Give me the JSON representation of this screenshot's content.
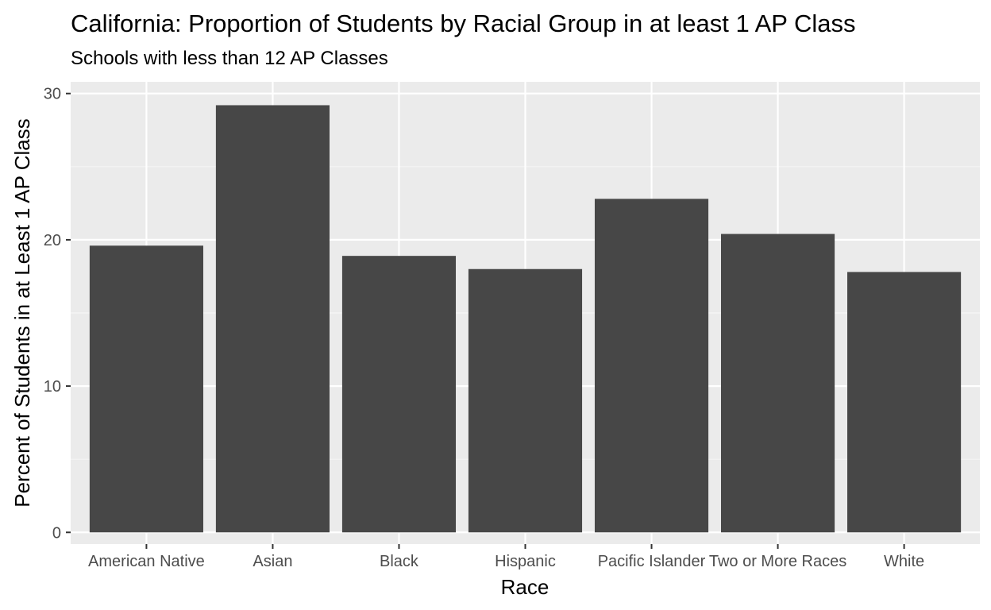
{
  "chart_data": {
    "type": "bar",
    "title": "California: Proportion of Students by Racial Group in at least 1 AP Class",
    "subtitle": "Schools with less than 12 AP Classes",
    "xlabel": "Race",
    "ylabel": "Percent of Students in at Least 1 AP Class",
    "categories": [
      "American Native",
      "Asian",
      "Black",
      "Hispanic",
      "Pacific Islander",
      "Two or More Races",
      "White"
    ],
    "values": [
      19.6,
      29.2,
      18.9,
      18.0,
      22.8,
      20.4,
      17.8
    ],
    "ylim": [
      -0.8,
      30.8
    ],
    "yticks": [
      0,
      10,
      20,
      30
    ],
    "ytick_labels": [
      "0",
      "10",
      "20",
      "30"
    ],
    "grid": true,
    "legend": "none",
    "colors": {
      "bar": "#474747",
      "panel_background": "#ebebeb",
      "grid_major": "#ffffff",
      "grid_minor": "#f5f5f5",
      "tick_label": "#4d4d4d",
      "tick_mark": "#333333"
    }
  }
}
